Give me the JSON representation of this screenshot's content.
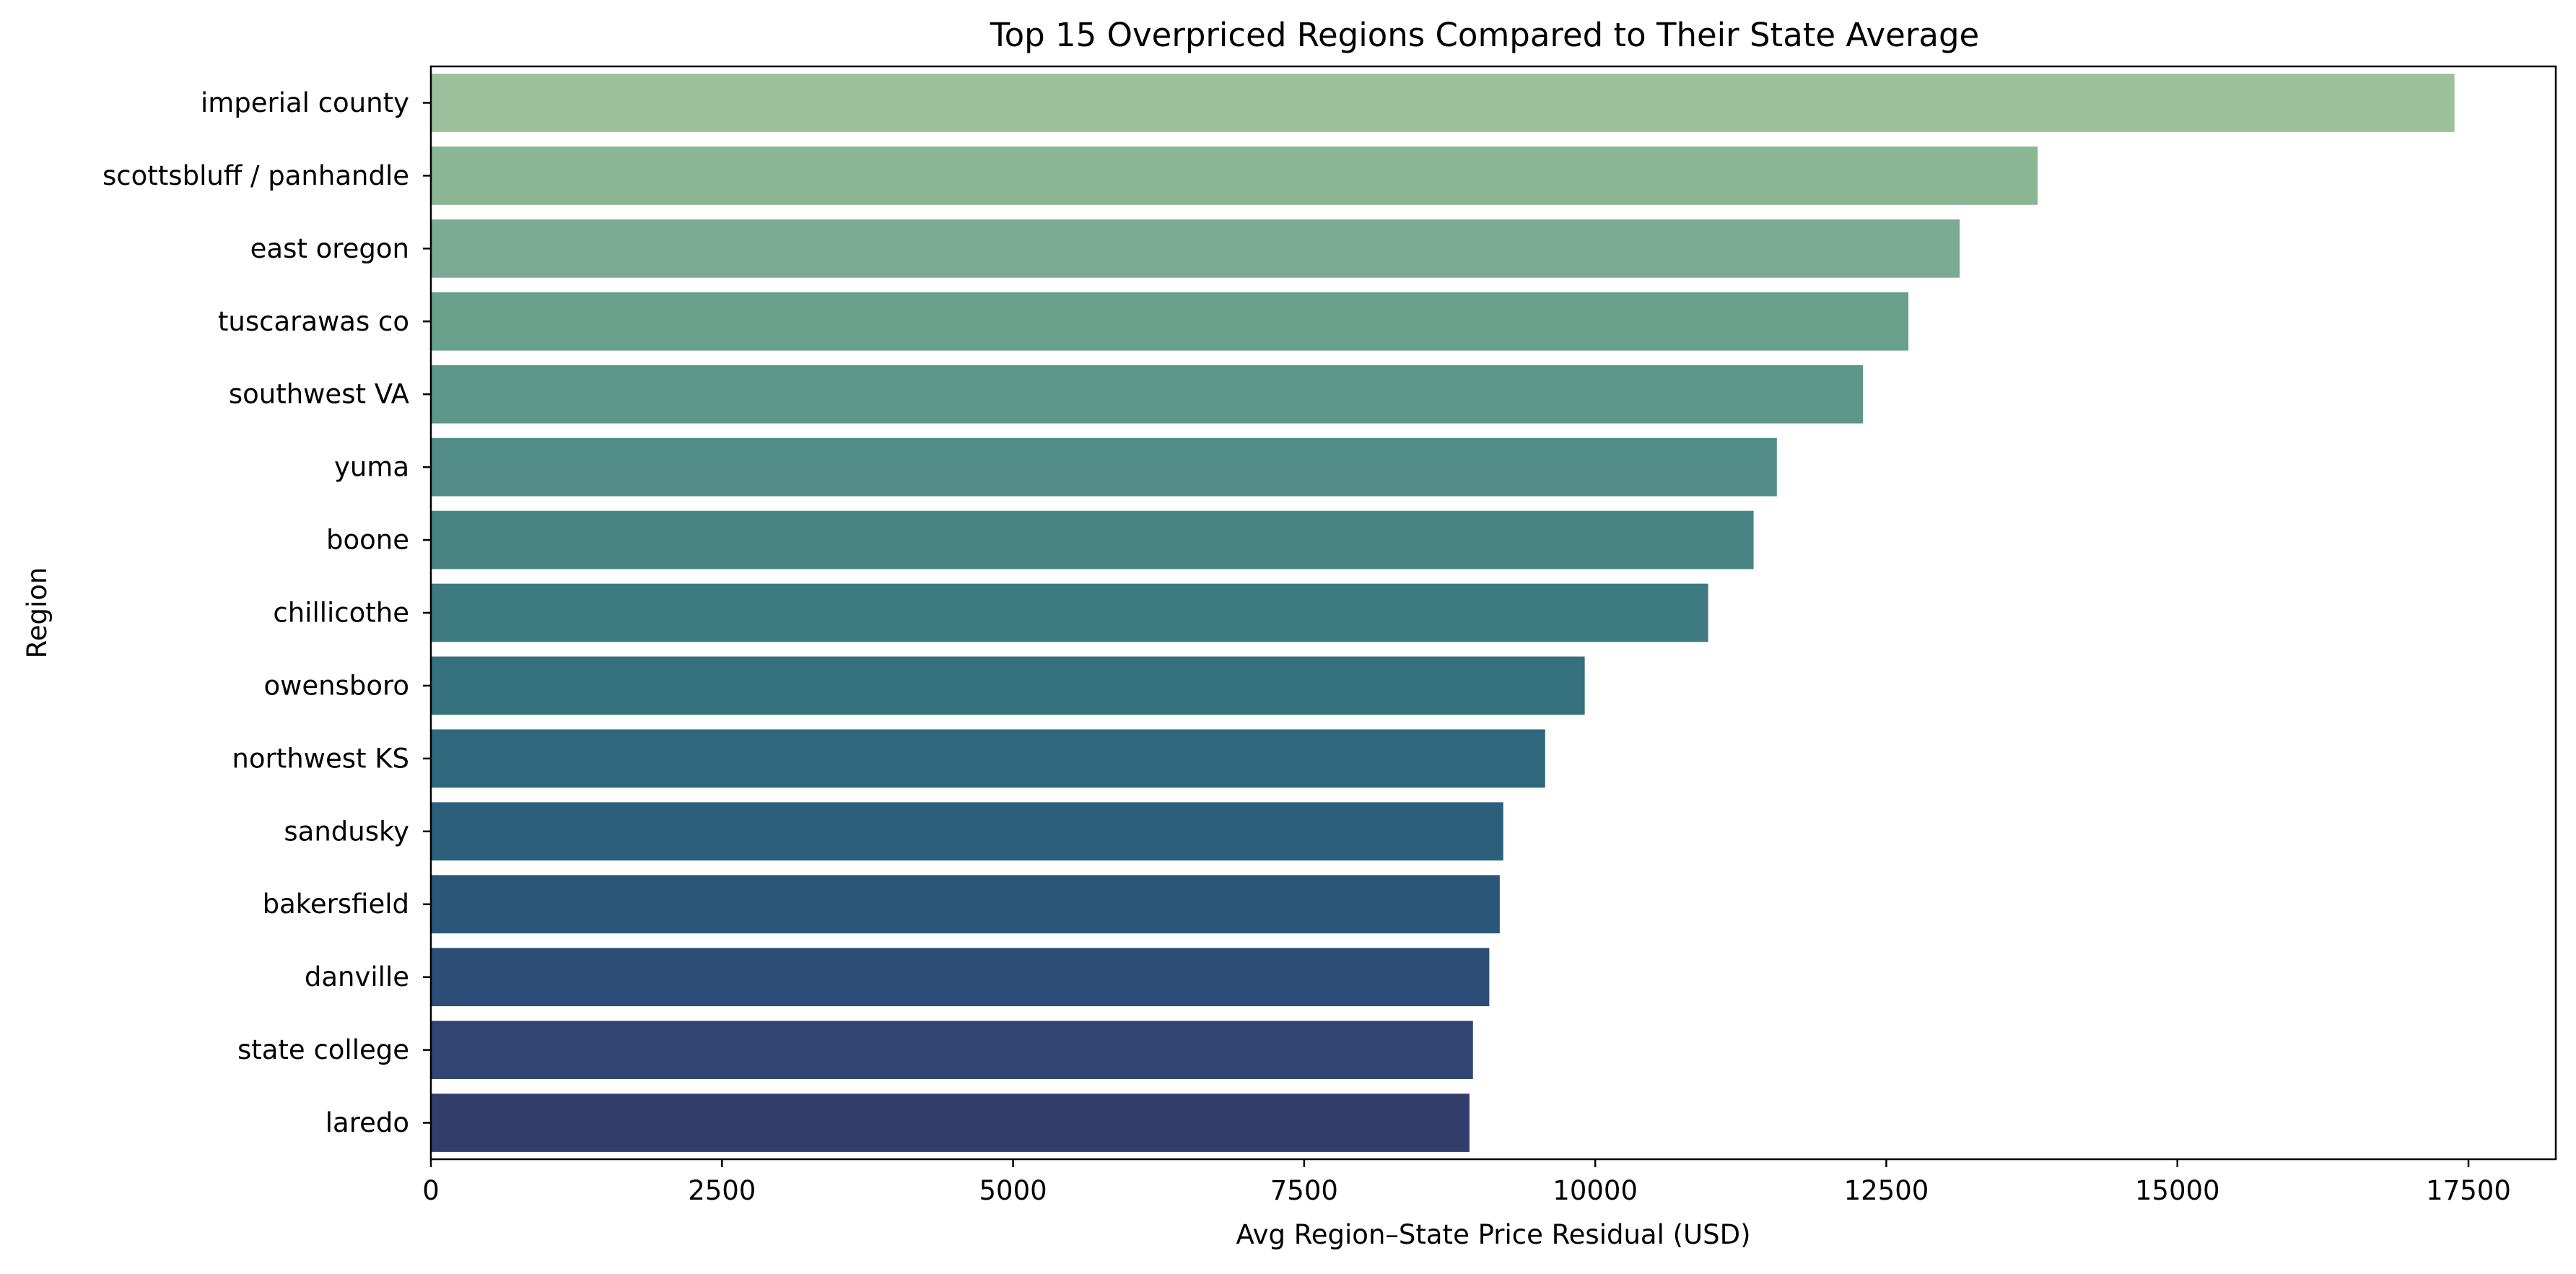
{
  "chart_data": {
    "type": "bar",
    "orientation": "horizontal",
    "title": "Top 15 Overpriced Regions Compared to Their State Average",
    "xlabel": "Avg Region–State Price Residual (USD)",
    "ylabel": "Region",
    "xlim": [
      0,
      18250
    ],
    "xticks": [
      0,
      2500,
      5000,
      7500,
      10000,
      12500,
      15000,
      17500
    ],
    "grid": false,
    "legend": "none",
    "categories": [
      "imperial county",
      "scottsbluff / panhandle",
      "east oregon",
      "tuscarawas co",
      "southwest VA",
      "yuma",
      "boone",
      "chillicothe",
      "owensboro",
      "northwest KS",
      "sandusky",
      "bakersfield",
      "danville",
      "state college",
      "laredo"
    ],
    "values": [
      17380,
      13800,
      13130,
      12690,
      12300,
      11560,
      11360,
      10970,
      9910,
      9570,
      9210,
      9180,
      9090,
      8950,
      8920
    ],
    "colors": [
      "#9bc09a",
      "#8ab693",
      "#7bab93",
      "#6aa18c",
      "#5d978a",
      "#518d86",
      "#488483",
      "#3e7b81",
      "#34717f",
      "#2f687d",
      "#2c5f7c",
      "#2b567a",
      "#2d4d77",
      "#304573",
      "#333d6c"
    ]
  }
}
